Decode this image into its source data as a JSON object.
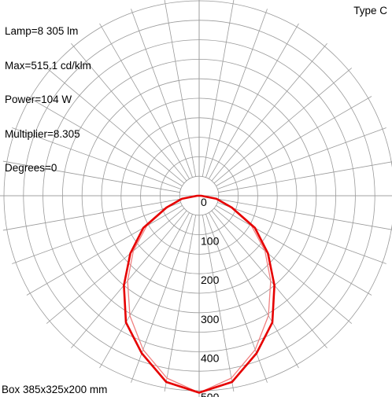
{
  "info": {
    "lamp": "Lamp=8 305 lm",
    "max": "Max=515.1 cd/klm",
    "power": "Power=104 W",
    "multiplier": "Multiplier=8.305",
    "degrees": "Degrees=0"
  },
  "type_label": "Type C",
  "box_label": "Box 385x325x200 mm",
  "colors": {
    "grid": "#9a9a9a",
    "curve_c0": "#e60000",
    "curve_c90": "#f08080",
    "text": "#000000"
  },
  "chart_data": {
    "type": "polar",
    "radial_ticks": [
      "0",
      "100",
      "200",
      "300",
      "400",
      "500"
    ],
    "radial_max": 500,
    "angle_step_deg": 10,
    "grid": true,
    "series": [
      {
        "angles_deg": [
          -180,
          -170,
          -160,
          -150,
          -140,
          -130,
          -120,
          -110,
          -100,
          -90,
          -80,
          -70,
          -60,
          -50,
          -40,
          -30,
          -20,
          -10,
          0,
          10,
          20,
          30,
          40,
          50,
          60,
          70,
          80,
          90,
          100,
          110,
          120,
          130,
          140,
          150,
          160,
          170,
          180
        ],
        "values": [
          0,
          0,
          0,
          0,
          0,
          0,
          0,
          0,
          0,
          5,
          45,
          90,
          165,
          230,
          300,
          375,
          430,
          485,
          505,
          485,
          430,
          375,
          300,
          230,
          165,
          90,
          45,
          5,
          0,
          0,
          0,
          0,
          0,
          0,
          0,
          0,
          0
        ]
      },
      {
        "angles_deg": [
          -90,
          -80,
          -70,
          -60,
          -50,
          -40,
          -30,
          -20,
          -10,
          0,
          10,
          20,
          30,
          40,
          50,
          60,
          70,
          80,
          90
        ],
        "values": [
          5,
          42,
          85,
          155,
          220,
          285,
          355,
          420,
          475,
          505,
          475,
          420,
          355,
          285,
          220,
          155,
          85,
          42,
          5
        ]
      }
    ]
  }
}
